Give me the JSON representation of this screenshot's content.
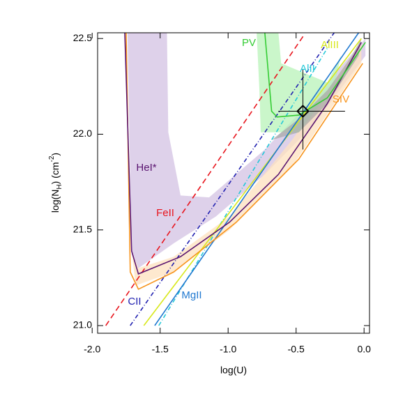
{
  "chart_data": {
    "type": "line",
    "xlabel": "log(U)",
    "ylabel": {
      "base": "log(N",
      "sub": "H",
      "mid": ") (cm",
      "sup": "-2",
      "end": ")"
    },
    "xlim": [
      -1.96,
      0.04
    ],
    "ylim": [
      20.96,
      22.53
    ],
    "xticks": [
      {
        "value": -2,
        "label": "-2.0"
      },
      {
        "value": -1.5,
        "label": "-1.5"
      },
      {
        "value": -1,
        "label": "-1.0"
      },
      {
        "value": -0.5,
        "label": "-0.5"
      },
      {
        "value": 0,
        "label": "0.0"
      }
    ],
    "yticks": [
      {
        "value": 21,
        "label": "21.0"
      },
      21.5,
      {
        "value": 22,
        "label": "22.0"
      },
      22.5
    ],
    "bands": [
      {
        "color": "#d3c2e3",
        "x": [
          -1.74,
          -1.45,
          -1.44,
          -1.35,
          -1.14,
          -0.73,
          -0.37,
          0.01,
          0.01,
          -0.37,
          -0.73,
          -1.09,
          -1.4,
          -1.66,
          -1.71
        ],
        "y": [
          22.53,
          22.53,
          22.01,
          21.68,
          21.67,
          21.92,
          22.19,
          22.5,
          22.41,
          22.05,
          21.79,
          21.57,
          21.43,
          21.3,
          21.39
        ]
      },
      {
        "color": "#fde2bf",
        "x": [
          -1.71,
          -1.68,
          -1.4,
          -0.99,
          -0.53,
          -0.02,
          -0.02,
          -0.53,
          -0.99,
          -1.4,
          -1.66
        ],
        "y": [
          21.39,
          21.21,
          21.28,
          21.5,
          21.83,
          22.37,
          22.48,
          21.97,
          21.57,
          21.36,
          21.3
        ]
      },
      {
        "color": "#b8f3b8",
        "x": [
          -0.79,
          -0.63,
          -0.61,
          -0.27,
          -0.17,
          -0.22,
          -0.48,
          -0.76,
          -0.77
        ],
        "y": [
          22.53,
          22.53,
          22.37,
          22.27,
          22.41,
          22.25,
          22.01,
          22.01,
          22.23
        ]
      },
      {
        "color": "#a8a8a8",
        "x": [
          -0.68,
          -0.48,
          -0.27,
          -0.09,
          -0.02,
          -0.04,
          -0.27,
          -0.48
        ],
        "y": [
          21.97,
          22.08,
          22.23,
          22.41,
          22.5,
          22.41,
          22.16,
          22.01
        ]
      }
    ],
    "series": [
      {
        "color": "#e8141c",
        "dash": "8,5",
        "x": [
          -1.9,
          -1.2,
          -0.44
        ],
        "y": [
          21.0,
          21.73,
          22.52
        ]
      },
      {
        "color": "#2020b0",
        "dash": "6,3,1,3",
        "x": [
          -1.72,
          -0.22
        ],
        "y": [
          21.0,
          22.53
        ]
      },
      {
        "color": "#22c8d8",
        "dash": "6,3,1,3",
        "x": [
          -1.51,
          -0.27
        ],
        "y": [
          21.0,
          22.45
        ]
      },
      {
        "color": "#d8e81c",
        "dash": "",
        "x": [
          -1.62,
          -0.02
        ],
        "y": [
          21.0,
          22.5
        ]
      },
      {
        "color": "#1f78d0",
        "dash": "",
        "x": [
          -1.54,
          -0.04
        ],
        "y": [
          21.0,
          22.53
        ]
      },
      {
        "color": "#f7941d",
        "dash": "",
        "x": [
          -1.75,
          -1.72,
          -1.66,
          -1.4,
          -0.94,
          -0.48,
          -0.01
        ],
        "y": [
          22.53,
          21.28,
          21.19,
          21.28,
          21.54,
          21.87,
          22.37
        ]
      },
      {
        "color": "#5a1470",
        "dash": "",
        "x": [
          -1.76,
          -1.71,
          -1.66,
          -1.35,
          -0.99,
          -0.63,
          -0.27,
          -0.02
        ],
        "y": [
          22.53,
          21.39,
          21.27,
          21.36,
          21.54,
          21.79,
          22.16,
          22.48
        ]
      },
      {
        "color": "#33cc33",
        "dash": "",
        "x": [
          -0.73,
          -0.68,
          -0.64,
          -0.48,
          -0.27,
          0.01
        ],
        "y": [
          22.53,
          22.12,
          22.09,
          22.1,
          22.19,
          22.48
        ]
      }
    ],
    "point": {
      "x": -0.45,
      "y": 22.12,
      "xlow": -0.63,
      "xhigh": -0.14,
      "ylow": 21.92,
      "yhigh": 22.34
    },
    "annotations": [
      {
        "text": "PV",
        "color": "#33cc33"
      },
      {
        "text": "AlIII",
        "color": "#d8e81c"
      },
      {
        "text": "AlII",
        "color": "#22c8d8"
      },
      {
        "text": "SIV",
        "color": "#f7941d"
      },
      {
        "text": "HeI*",
        "color": "#5a1470"
      },
      {
        "text": "FeII",
        "color": "#e8141c"
      },
      {
        "text": "CII",
        "color": "#2020b0"
      },
      {
        "text": "MgII",
        "color": "#1f78d0"
      }
    ]
  }
}
